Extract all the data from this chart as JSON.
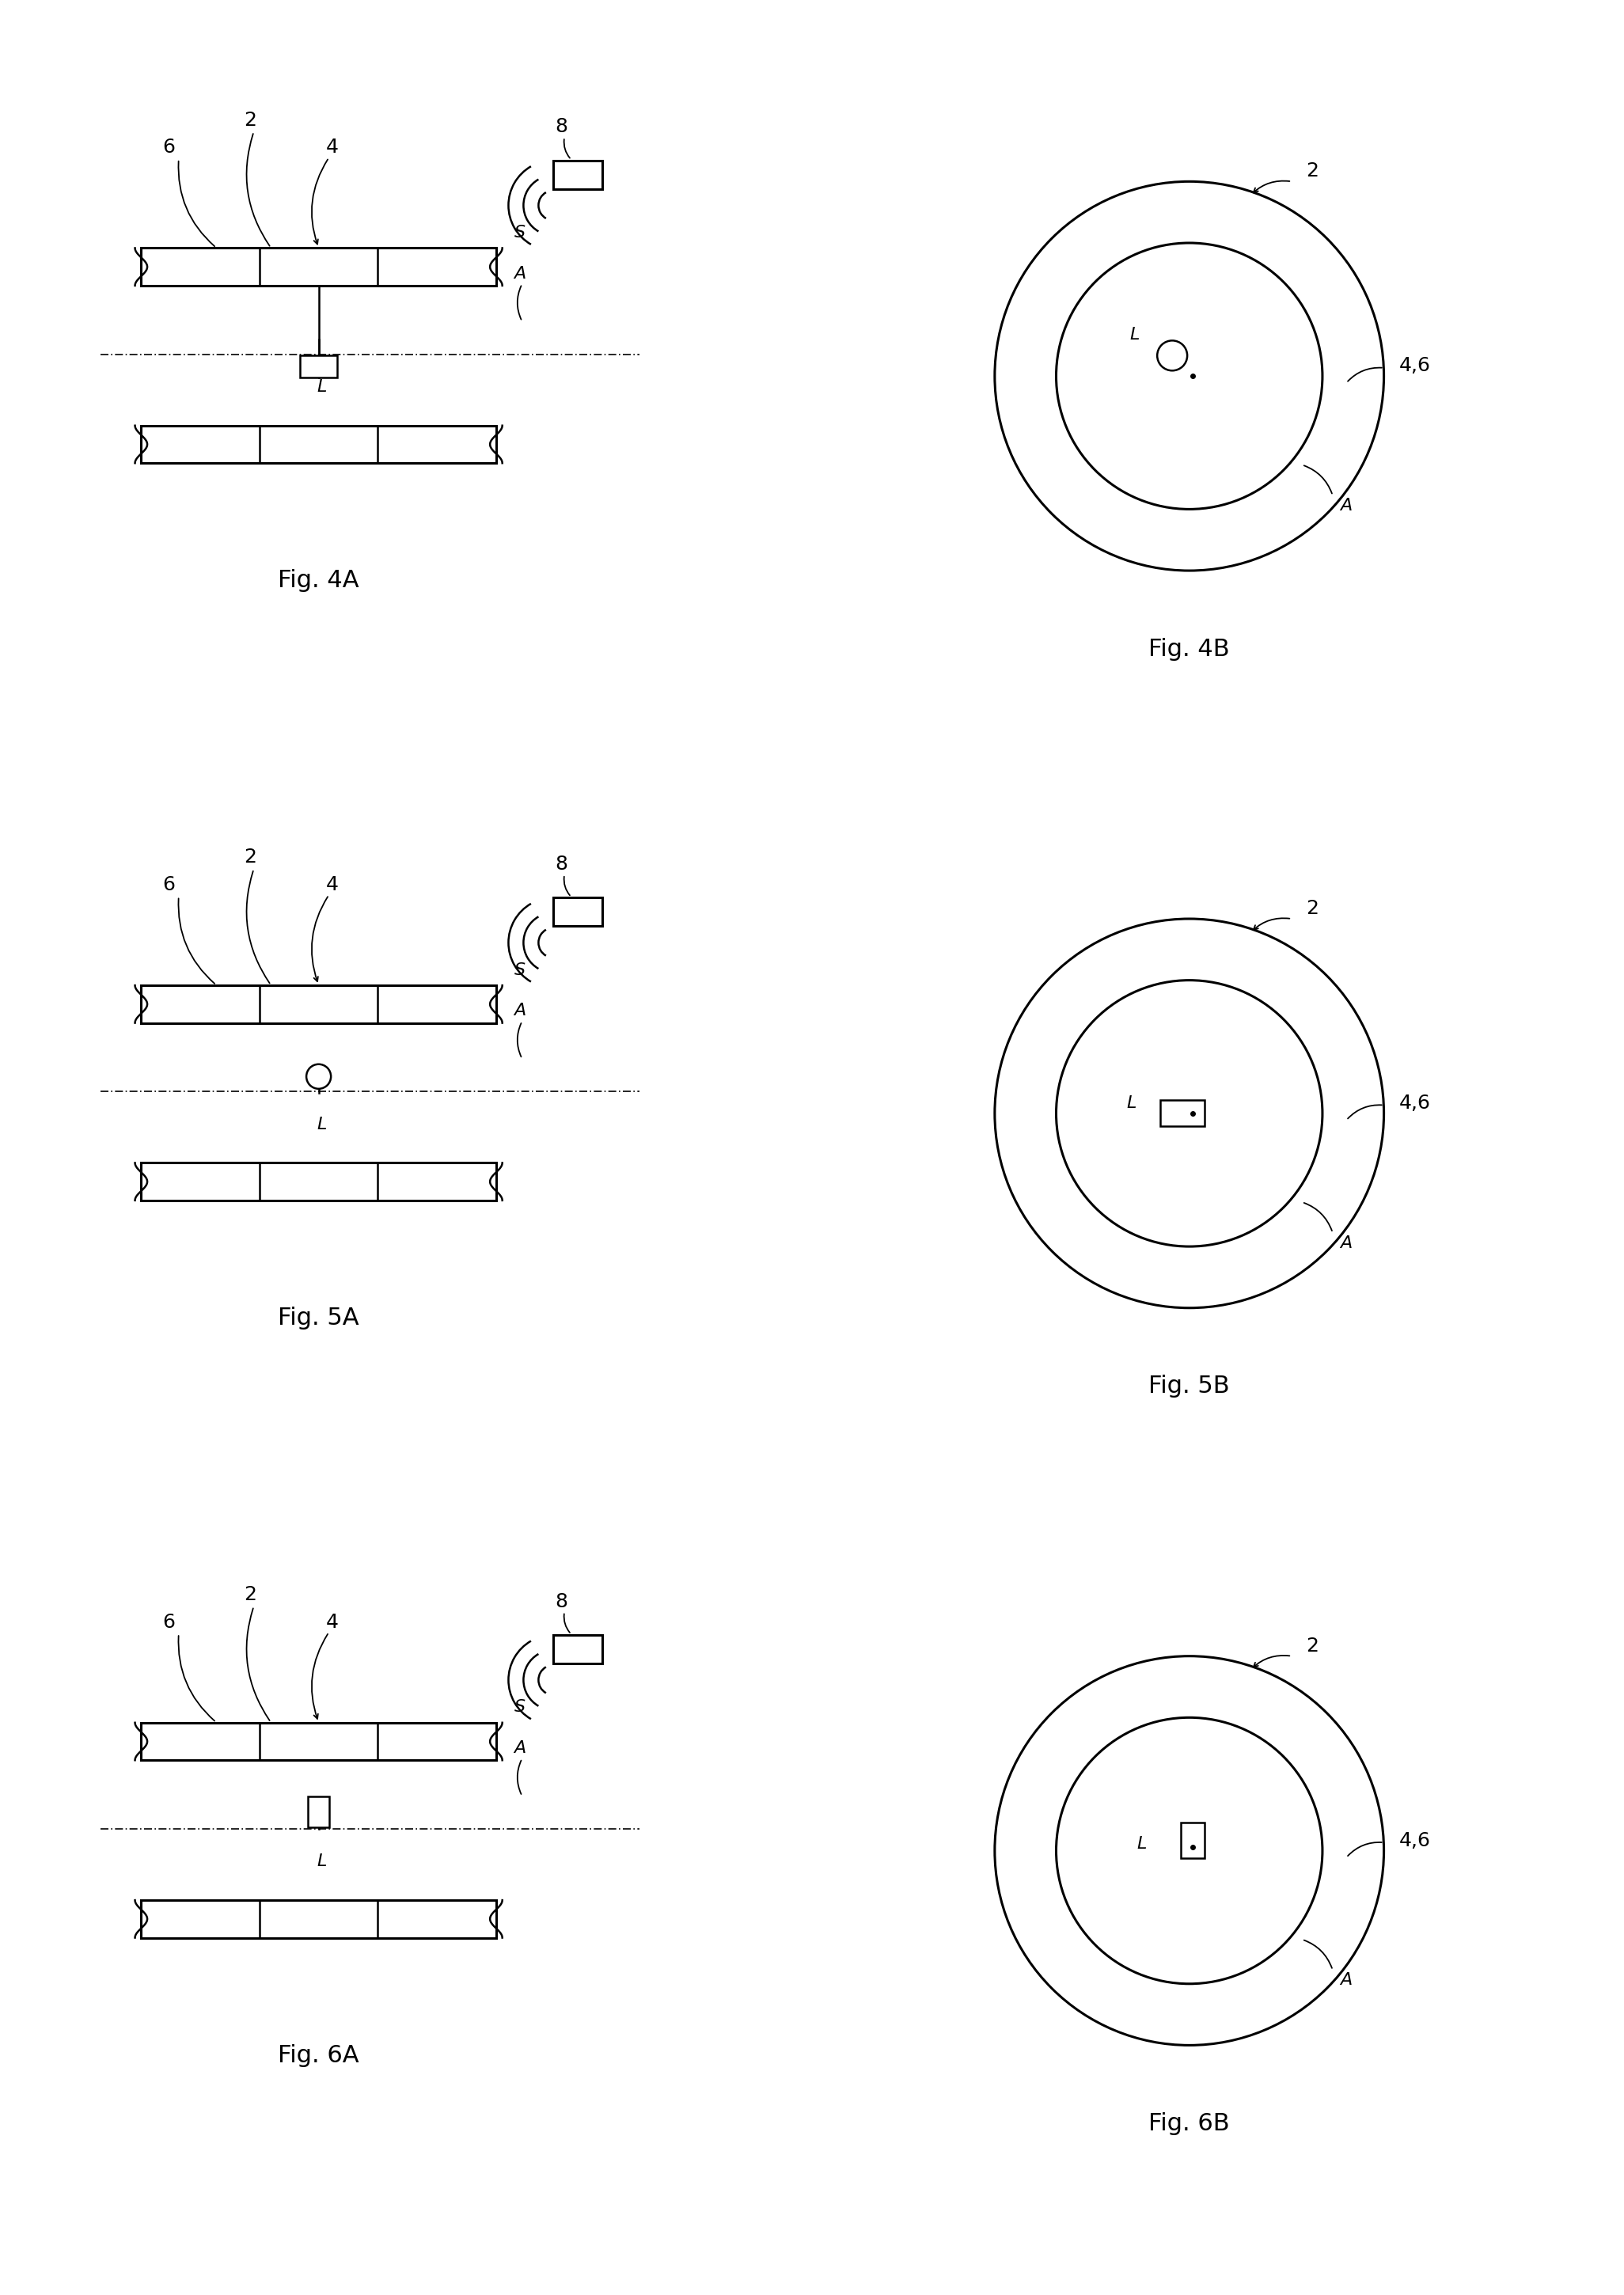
{
  "bg_color": "#ffffff",
  "line_color": "#000000",
  "fig_labels": [
    "Fig. 4A",
    "Fig. 4B",
    "Fig. 5A",
    "Fig. 5B",
    "Fig. 6A",
    "Fig. 6B"
  ],
  "label_fontsize": 22,
  "annot_fontsize": 18
}
